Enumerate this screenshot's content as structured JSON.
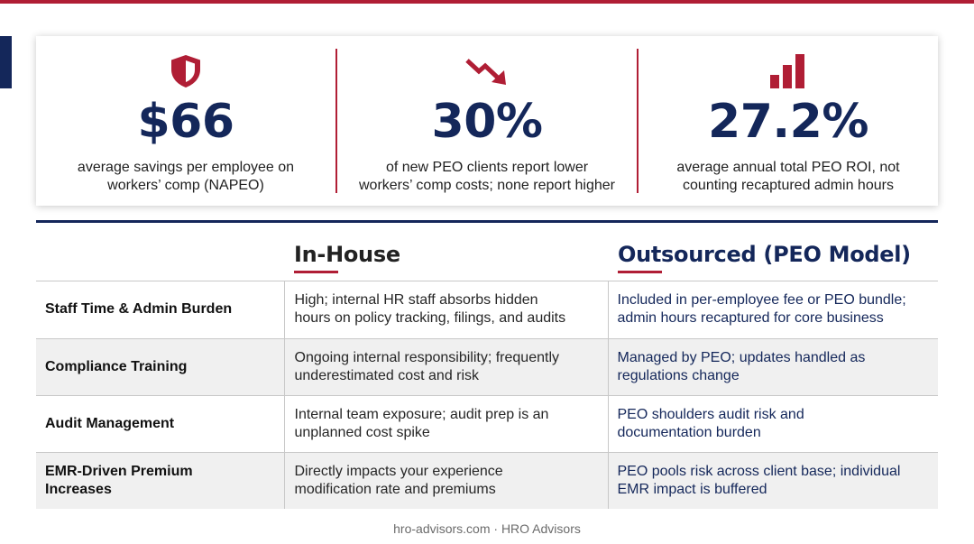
{
  "colors": {
    "accent_red": "#b01e35",
    "navy": "#14275a"
  },
  "stats": [
    {
      "icon": "shield-icon",
      "value": "$66",
      "desc_line1": "average savings per employee on",
      "desc_line2": "workers’ comp (NAPEO)"
    },
    {
      "icon": "trend-down-arrow-icon",
      "value": "30%",
      "desc_line1": "of new PEO clients report lower",
      "desc_line2": "workers’ comp costs; none report higher"
    },
    {
      "icon": "bar-chart-icon",
      "value": "27.2%",
      "desc_line1": "average annual total PEO ROI, not",
      "desc_line2": "counting recaptured admin hours"
    }
  ],
  "comparison": {
    "col_inhouse": "In-House",
    "col_peo": "Outsourced (PEO Model)",
    "rows": [
      {
        "label": "Staff Time & Admin Burden",
        "inhouse_l1": "High; internal HR staff absorbs hidden",
        "inhouse_l2": "hours on policy tracking, filings, and audits",
        "peo_l1": "Included in per-employee fee or PEO bundle;",
        "peo_l2": "admin hours recaptured for core business"
      },
      {
        "label": "Compliance Training",
        "inhouse_l1": "Ongoing internal responsibility; frequently",
        "inhouse_l2": "underestimated cost and risk",
        "peo_l1": "Managed by PEO; updates handled as",
        "peo_l2": "regulations change"
      },
      {
        "label": "Audit Management",
        "inhouse_l1": "Internal team exposure; audit prep is an",
        "inhouse_l2": "unplanned cost spike",
        "peo_l1": "PEO shoulders audit risk and",
        "peo_l2": "documentation burden"
      },
      {
        "label_l1": "EMR-Driven Premium",
        "label_l2": "Increases",
        "inhouse_l1": "Directly impacts your experience",
        "inhouse_l2": "modification rate and premiums",
        "peo_l1": "PEO pools risk across client base; individual",
        "peo_l2": "EMR impact is buffered"
      }
    ]
  },
  "footer": "hro-advisors.com · HRO Advisors"
}
